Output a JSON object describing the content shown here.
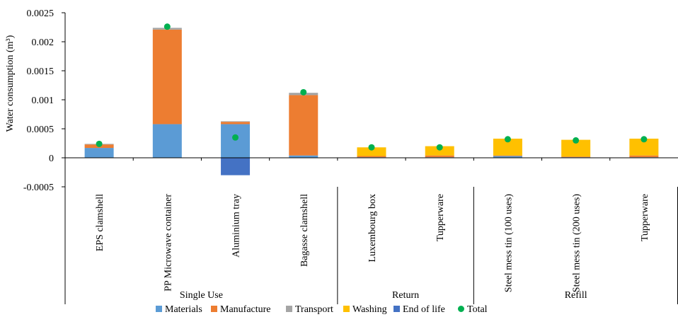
{
  "chart_data": {
    "type": "bar",
    "stacked": true,
    "title": "",
    "xlabel": "",
    "ylabel": "Water consumption (m³)",
    "ylim": [
      -0.0005,
      0.0025
    ],
    "yticks": [
      "0.0025",
      "0.002",
      "0.0015",
      "0.001",
      "0.0005",
      "0",
      "-0.0005"
    ],
    "grid": false,
    "legend_position": "bottom",
    "categories": [
      "EPS clamshell",
      "PP Microwave container",
      "Aluminium tray",
      "Bagasse clamshell",
      "Luxembourg box",
      "Tupperware",
      "Steel mess tin (100 uses)",
      "Steel mess tin (200 uses)",
      "Tupperware"
    ],
    "groups": [
      {
        "label": "Single Use",
        "count": 4
      },
      {
        "label": "Return",
        "count": 2
      },
      {
        "label": "Refill",
        "count": 3
      }
    ],
    "series": [
      {
        "name": "Materials",
        "color": "#5b9bd5",
        "values": [
          0.00017,
          0.00058,
          0.00058,
          4e-05,
          1e-05,
          1e-05,
          3e-05,
          1e-05,
          1e-05
        ]
      },
      {
        "name": "Manufacture",
        "color": "#ed7d31",
        "values": [
          6e-05,
          0.00163,
          4e-05,
          0.00104,
          2e-05,
          3e-05,
          1e-05,
          1e-05,
          3e-05
        ]
      },
      {
        "name": "Transport",
        "color": "#a5a5a5",
        "values": [
          1e-05,
          3e-05,
          1e-05,
          4e-05,
          0.0,
          0.0,
          0.0,
          0.0,
          0.0
        ]
      },
      {
        "name": "Washing",
        "color": "#ffc000",
        "values": [
          0.0,
          0.0,
          0.0,
          0.0,
          0.00015,
          0.00016,
          0.00029,
          0.00029,
          0.00029
        ]
      },
      {
        "name": "End of life",
        "color": "#4472c4",
        "values": [
          0.0,
          0.0,
          -0.0003,
          0.0,
          0.0,
          0.0,
          0.0,
          0.0,
          0.0
        ]
      }
    ],
    "total": {
      "name": "Total",
      "color": "#00b050",
      "values": [
        0.00024,
        0.00226,
        0.00035,
        0.00113,
        0.00018,
        0.00018,
        0.00032,
        0.0003,
        0.00032
      ]
    }
  }
}
